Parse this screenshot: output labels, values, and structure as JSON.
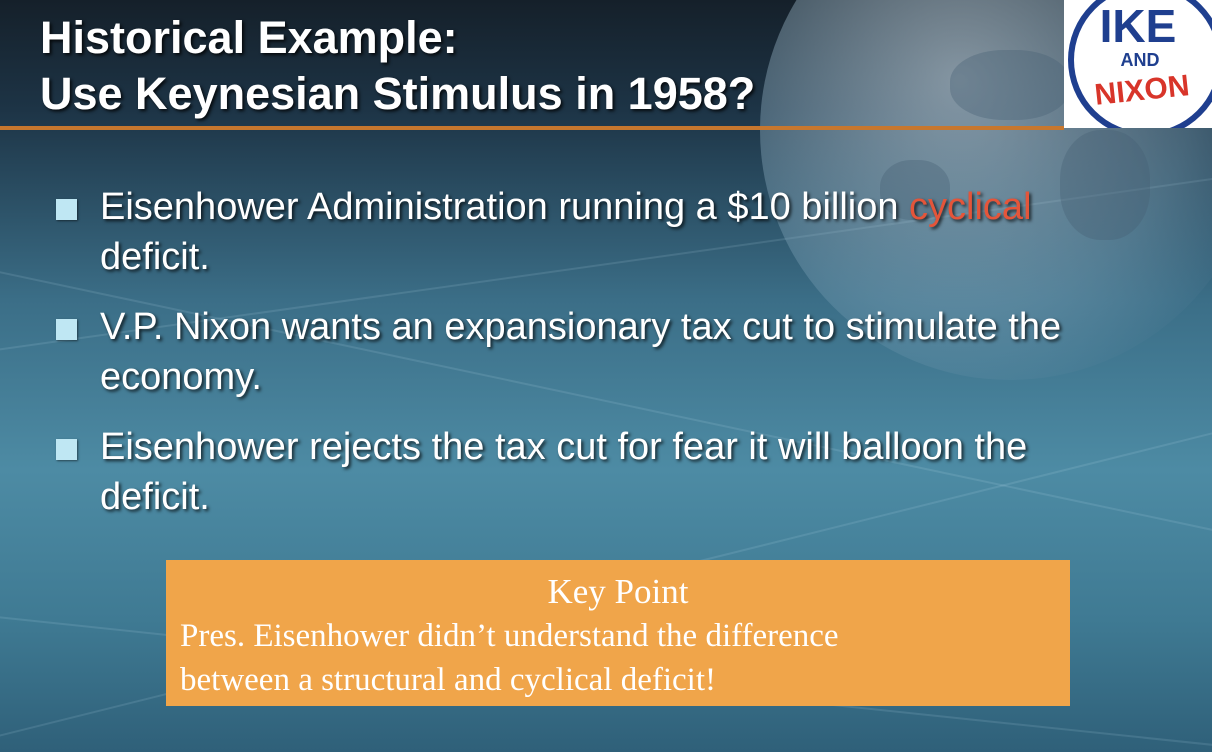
{
  "title": {
    "line1": "Historical Example:",
    "line2": "Use Keynesian Stimulus in 1958?"
  },
  "logo": {
    "top": "IKE",
    "middle": "AND",
    "bottom": "NIXON",
    "colors": {
      "red": "#d8352a",
      "blue": "#1f3f8f",
      "white": "#ffffff"
    }
  },
  "bullets": [
    {
      "before": "Eisenhower Administration running a $10 billion ",
      "highlight": "cyclical",
      "after": " deficit."
    },
    {
      "text": "V.P. Nixon wants an expansionary tax cut to stimulate the economy."
    },
    {
      "text": "Eisenhower rejects the tax cut for fear it will balloon the deficit."
    }
  ],
  "key_point": {
    "title": "Key Point",
    "line1": "Pres. Eisenhower didn’t understand the difference",
    "line2": "between a structural and cyclical deficit!"
  },
  "colors": {
    "accent_rule": "#c7772e",
    "highlight": "#e4553a",
    "bullet_square": "#bfe7f3",
    "key_box": "#f0a54a"
  }
}
